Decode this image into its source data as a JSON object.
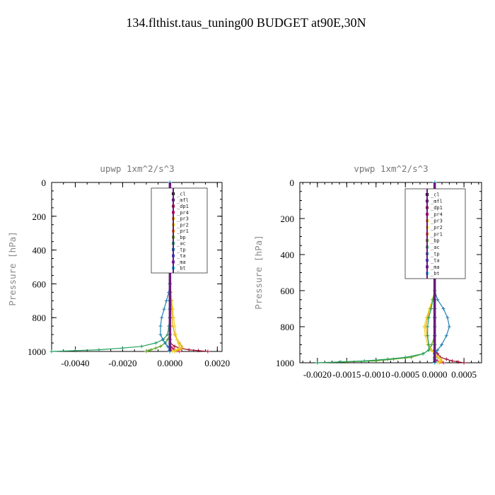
{
  "figure": {
    "title": "134.flthist.taus_tuning00  BUDGET at90E,30N"
  },
  "chart_data": [
    {
      "type": "line",
      "title": "upwp  1xm^2/s^3",
      "xlabel": "",
      "ylabel": "Pressure [hPa]",
      "xlim": [
        -0.005,
        0.0022
      ],
      "ylim": [
        1000,
        0
      ],
      "y_reversed": true,
      "xticks": [
        -0.004,
        -0.002,
        0.0,
        0.002
      ],
      "xtick_labels": [
        "-0.0040",
        "-0.0020",
        "0.0000",
        "0.0020"
      ],
      "yticks": [
        0,
        200,
        400,
        600,
        800,
        1000
      ],
      "ytick_labels": [
        "0",
        "200",
        "400",
        "600",
        "800",
        "1000"
      ],
      "legend_position": "top-right",
      "pressure_levels": [
        0,
        100,
        200,
        300,
        400,
        500,
        600,
        650,
        700,
        750,
        800,
        850,
        900,
        930,
        950,
        970,
        980,
        990,
        995,
        1000
      ],
      "series": [
        {
          "name": "_cl",
          "color": "#000000",
          "values": [
            0,
            0,
            0,
            0,
            0,
            0,
            0,
            0,
            0,
            0,
            0,
            0,
            0,
            0,
            0,
            0,
            0,
            0,
            0,
            0
          ]
        },
        {
          "name": "_mfl",
          "color": "#4b1c6e",
          "values": [
            0,
            0,
            0,
            0,
            0,
            0,
            0,
            0,
            0,
            0,
            0,
            0,
            0,
            0,
            0,
            0,
            0,
            0,
            0,
            0
          ]
        },
        {
          "name": "_dp1",
          "color": "#a01030",
          "values": [
            0,
            0,
            0,
            0,
            0,
            0,
            0,
            0,
            0,
            0,
            0,
            0,
            0,
            0,
            0,
            0.0002,
            0.0004,
            0.0008,
            0.0012,
            0.0016
          ]
        },
        {
          "name": "_pr4",
          "color": "#d01060",
          "values": [
            0,
            0,
            0,
            0,
            0,
            0,
            0,
            0,
            0,
            0,
            0,
            0,
            0,
            0,
            0,
            0,
            0.0001,
            0.0002,
            0.0003,
            0.0004
          ]
        },
        {
          "name": "_pr3",
          "color": "#e0a000",
          "values": [
            0,
            0,
            0,
            0,
            0,
            0,
            0,
            3e-05,
            6e-05,
            8e-05,
            0.0001,
            0.00012,
            0.0002,
            0.0003,
            0.0004,
            0.0005,
            0.0005,
            0.0004,
            0.0003,
            0.0002
          ]
        },
        {
          "name": "_pr2",
          "color": "#f0d020",
          "values": [
            0,
            0,
            0,
            0,
            0,
            0,
            0,
            4e-05,
            8e-05,
            0.00012,
            0.00016,
            0.0002,
            0.00025,
            0.0003,
            0.00035,
            0.0004,
            0.0004,
            0.0003,
            0.0002,
            0.0001
          ]
        },
        {
          "name": "_pr1",
          "color": "#f08020",
          "values": [
            0,
            0,
            0,
            0,
            0,
            0,
            0,
            0,
            0,
            0,
            0,
            0,
            0,
            0,
            0,
            0,
            0,
            0,
            0,
            0
          ]
        },
        {
          "name": "_bp",
          "color": "#60a020",
          "values": [
            0,
            0,
            0,
            0,
            0,
            0,
            0,
            0,
            0,
            0,
            0,
            0,
            0,
            -0.0001,
            -0.0002,
            -0.0004,
            -0.0006,
            -0.0008,
            -0.0009,
            -0.001
          ]
        },
        {
          "name": "_ac",
          "color": "#20a060",
          "values": [
            0,
            0,
            0,
            0,
            0,
            0,
            0,
            0,
            0,
            0,
            0,
            -5e-05,
            -0.0001,
            -0.0003,
            -0.0006,
            -0.0012,
            -0.002,
            -0.003,
            -0.004,
            -0.005
          ]
        },
        {
          "name": "_tp",
          "color": "#2080b0",
          "values": [
            0,
            0,
            0,
            0,
            0,
            0,
            0,
            -5e-05,
            -0.00015,
            -0.00025,
            -0.00035,
            -0.0004,
            -0.0004,
            -0.0003,
            -0.0002,
            -0.0001,
            0,
            0,
            0,
            0
          ]
        },
        {
          "name": "_ta",
          "color": "#4050d0",
          "values": [
            0,
            0,
            0,
            0,
            0,
            0,
            0,
            0,
            0,
            0,
            0,
            0,
            0,
            0,
            0,
            0,
            0,
            0,
            0,
            0
          ]
        },
        {
          "name": "_ma",
          "color": "#7020a0",
          "values": [
            0,
            0,
            0,
            0,
            0,
            0,
            0,
            0,
            0,
            0,
            0,
            0,
            0,
            0,
            0,
            0,
            0,
            0,
            0,
            0
          ]
        },
        {
          "name": "_bt",
          "color": "#20d0e0",
          "values": [
            0,
            0,
            0,
            0,
            0,
            0,
            0,
            0,
            0,
            0,
            0,
            0,
            0,
            0,
            0,
            0,
            0,
            0,
            0,
            0
          ]
        }
      ]
    },
    {
      "type": "line",
      "title": "vpwp  1xm^2/s^3",
      "xlabel": "",
      "ylabel": "Pressure [hPa]",
      "xlim": [
        -0.0023,
        0.0008
      ],
      "ylim": [
        1000,
        0
      ],
      "y_reversed": true,
      "xticks": [
        -0.002,
        -0.0015,
        -0.001,
        -0.0005,
        0.0,
        0.0005
      ],
      "xtick_labels": [
        "-0.0020",
        "-0.0015",
        "-0.0010",
        "-0.0005",
        "0.0000",
        "0.0005"
      ],
      "yticks": [
        0,
        200,
        400,
        600,
        800,
        1000
      ],
      "ytick_labels": [
        "0",
        "200",
        "400",
        "600",
        "800",
        "1000"
      ],
      "legend_position": "top-right",
      "pressure_levels": [
        0,
        100,
        200,
        300,
        400,
        500,
        600,
        650,
        700,
        750,
        800,
        850,
        900,
        930,
        950,
        970,
        980,
        990,
        995,
        1000
      ],
      "series": [
        {
          "name": "_cl",
          "color": "#000000",
          "values": [
            0,
            0,
            0,
            0,
            0,
            0,
            0,
            0,
            0,
            0,
            0,
            0,
            0,
            0,
            0,
            0,
            0,
            0,
            0,
            0
          ]
        },
        {
          "name": "_mfl",
          "color": "#4b1c6e",
          "values": [
            0,
            0,
            0,
            0,
            0,
            0,
            0,
            0,
            0,
            0,
            0,
            0,
            0,
            0,
            0,
            0,
            0,
            0,
            0,
            0
          ]
        },
        {
          "name": "_dp1",
          "color": "#a01030",
          "values": [
            0,
            0,
            0,
            0,
            0,
            0,
            0,
            0,
            0,
            0,
            0,
            0,
            0,
            0,
            5e-05,
            0.0001,
            0.0002,
            0.0003,
            0.0004,
            0.0005
          ]
        },
        {
          "name": "_pr4",
          "color": "#d01060",
          "values": [
            0,
            0,
            0,
            0,
            0,
            0,
            0,
            0,
            0,
            0,
            0,
            0,
            0,
            0,
            0,
            0,
            0,
            5e-05,
            0.0001,
            0.00015
          ]
        },
        {
          "name": "_pr3",
          "color": "#e0a000",
          "values": [
            0,
            0,
            0,
            0,
            0,
            0,
            0,
            -3e-05,
            -8e-05,
            -0.00012,
            -0.00015,
            -0.00013,
            -0.0001,
            -5e-05,
            0,
            5e-05,
            0.0001,
            0.00012,
            0.0001,
            8e-05
          ]
        },
        {
          "name": "_pr2",
          "color": "#f0d020",
          "values": [
            0,
            0,
            0,
            0,
            0,
            0,
            0,
            -4e-05,
            -9e-05,
            -0.00014,
            -0.00018,
            -0.00016,
            -0.00012,
            -6e-05,
            0,
            6e-05,
            0.0001,
            0.0001,
            8e-05,
            5e-05
          ]
        },
        {
          "name": "_pr1",
          "color": "#f08020",
          "values": [
            0,
            0,
            0,
            0,
            0,
            0,
            0,
            0,
            0,
            0,
            0,
            0,
            0,
            0,
            0,
            0,
            0,
            0,
            0,
            0
          ]
        },
        {
          "name": "_bp",
          "color": "#60a020",
          "values": [
            0,
            0,
            0,
            0,
            0,
            0,
            0,
            0,
            0,
            0,
            0,
            0,
            -5e-05,
            -0.0001,
            -0.0002,
            -0.0004,
            -0.0007,
            -0.001,
            -0.0015,
            -0.002
          ]
        },
        {
          "name": "_ac",
          "color": "#20a060",
          "values": [
            0,
            0,
            0,
            0,
            0,
            0,
            0,
            -3e-05,
            -6e-05,
            -0.0001,
            -0.00012,
            -0.00012,
            -0.0001,
            -0.0001,
            -0.0002,
            -0.0005,
            -0.0008,
            -0.0012,
            -0.0016,
            -0.002
          ]
        },
        {
          "name": "_tp",
          "color": "#2080b0",
          "values": [
            0,
            0,
            0,
            0,
            0,
            0,
            0,
            5e-05,
            0.00015,
            0.00022,
            0.00025,
            0.0002,
            0.00012,
            5e-05,
            0,
            0,
            0,
            0,
            0,
            0
          ]
        },
        {
          "name": "_ta",
          "color": "#4050d0",
          "values": [
            0,
            0,
            0,
            0,
            0,
            0,
            0,
            0,
            0,
            0,
            0,
            0,
            0,
            0,
            0,
            0,
            0,
            0,
            0,
            0
          ]
        },
        {
          "name": "_ma",
          "color": "#7020a0",
          "values": [
            0,
            0,
            0,
            0,
            0,
            0,
            0,
            0,
            0,
            0,
            0,
            0,
            0,
            0,
            0,
            0,
            0,
            0,
            0,
            0
          ]
        },
        {
          "name": "_bt",
          "color": "#20d0e0",
          "values": [
            0,
            0,
            0,
            0,
            0,
            0,
            0,
            0,
            0,
            0,
            0,
            0,
            0,
            0,
            0,
            0,
            0,
            0,
            0,
            0
          ]
        }
      ]
    }
  ]
}
